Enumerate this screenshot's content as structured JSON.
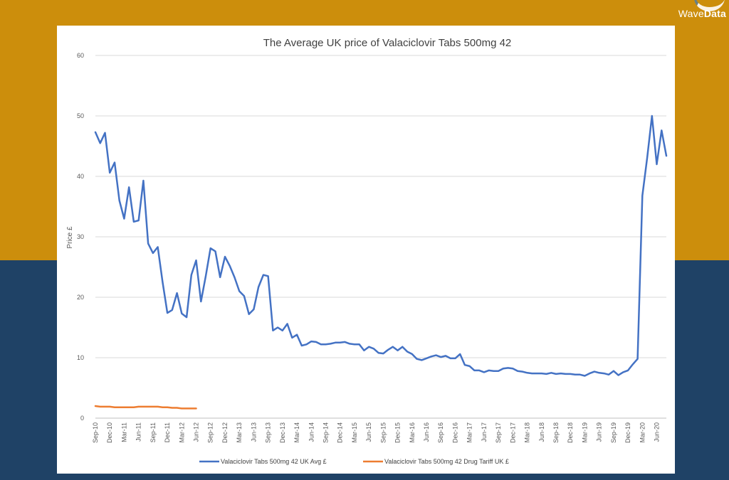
{
  "brand": {
    "logo_text_part1": "Wave",
    "logo_text_part2": "Data",
    "band_top_color": "#cc8e0c",
    "band_bottom_color": "#1f4266"
  },
  "chart_data": {
    "type": "line",
    "title": "The Average UK price of Valaciclovir Tabs 500mg 42",
    "xlabel": "",
    "ylabel": "Price £",
    "ylim": [
      0,
      60
    ],
    "yticks": [
      0,
      10,
      20,
      30,
      40,
      50,
      60
    ],
    "grid": true,
    "legend_position": "bottom",
    "x_tick_labels": [
      "Sep-10",
      "Dec-10",
      "Mar-11",
      "Jun-11",
      "Sep-11",
      "Dec-11",
      "Mar-12",
      "Jun-12",
      "Sep-12",
      "Dec-12",
      "Mar-13",
      "Jun-13",
      "Sep-13",
      "Dec-13",
      "Mar-14",
      "Jun-14",
      "Sep-14",
      "Dec-14",
      "Mar-15",
      "Jun-15",
      "Sep-15",
      "Dec-15",
      "Mar-16",
      "Jun-16",
      "Sep-16",
      "Dec-16",
      "Mar-17",
      "Jun-17",
      "Sep-17",
      "Dec-17",
      "Mar-18",
      "Jun-18",
      "Sep-18",
      "Dec-18",
      "Mar-19",
      "Jun-19",
      "Sep-19",
      "Dec-19",
      "Mar-20",
      "Jun-20"
    ],
    "series": [
      {
        "name": "Valaciclovir Tabs 500mg 42 UK Avg £",
        "color": "#4472c4",
        "values": [
          47.3,
          45.5,
          47.2,
          40.6,
          42.3,
          36.0,
          33.0,
          38.2,
          32.5,
          32.7,
          39.3,
          28.9,
          27.3,
          28.3,
          22.5,
          17.4,
          17.9,
          20.7,
          17.3,
          16.7,
          23.7,
          26.1,
          19.3,
          23.5,
          28.1,
          27.6,
          23.3,
          26.7,
          25.2,
          23.3,
          21.0,
          20.2,
          17.2,
          18.0,
          21.7,
          23.7,
          23.5,
          14.5,
          15.0,
          14.5,
          15.6,
          13.3,
          13.8,
          12.0,
          12.2,
          12.7,
          12.6,
          12.2,
          12.2,
          12.3,
          12.5,
          12.5,
          12.6,
          12.3,
          12.2,
          12.2,
          11.2,
          11.8,
          11.5,
          10.8,
          10.7,
          11.3,
          11.8,
          11.2,
          11.8,
          11.0,
          10.6,
          9.8,
          9.6,
          9.9,
          10.2,
          10.4,
          10.1,
          10.3,
          9.9,
          9.9,
          10.6,
          8.8,
          8.6,
          7.9,
          7.9,
          7.6,
          7.9,
          7.8,
          7.8,
          8.2,
          8.3,
          8.2,
          7.8,
          7.7,
          7.5,
          7.4,
          7.4,
          7.4,
          7.3,
          7.5,
          7.3,
          7.4,
          7.3,
          7.3,
          7.2,
          7.2,
          7.0,
          7.4,
          7.7,
          7.5,
          7.4,
          7.2,
          7.8,
          7.1,
          7.6,
          7.9,
          8.9,
          9.8,
          36.8,
          43.0,
          50.0,
          42.0,
          47.6,
          43.4
        ]
      },
      {
        "name": "Valaciclovir Tabs 500mg 42 Drug Tariff UK £",
        "color": "#ed7d31",
        "values": [
          2.0,
          1.9,
          1.9,
          1.9,
          1.8,
          1.8,
          1.8,
          1.8,
          1.8,
          1.9,
          1.9,
          1.9,
          1.9,
          1.9,
          1.8,
          1.8,
          1.7,
          1.7,
          1.6,
          1.6,
          1.6,
          1.6
        ]
      }
    ]
  }
}
